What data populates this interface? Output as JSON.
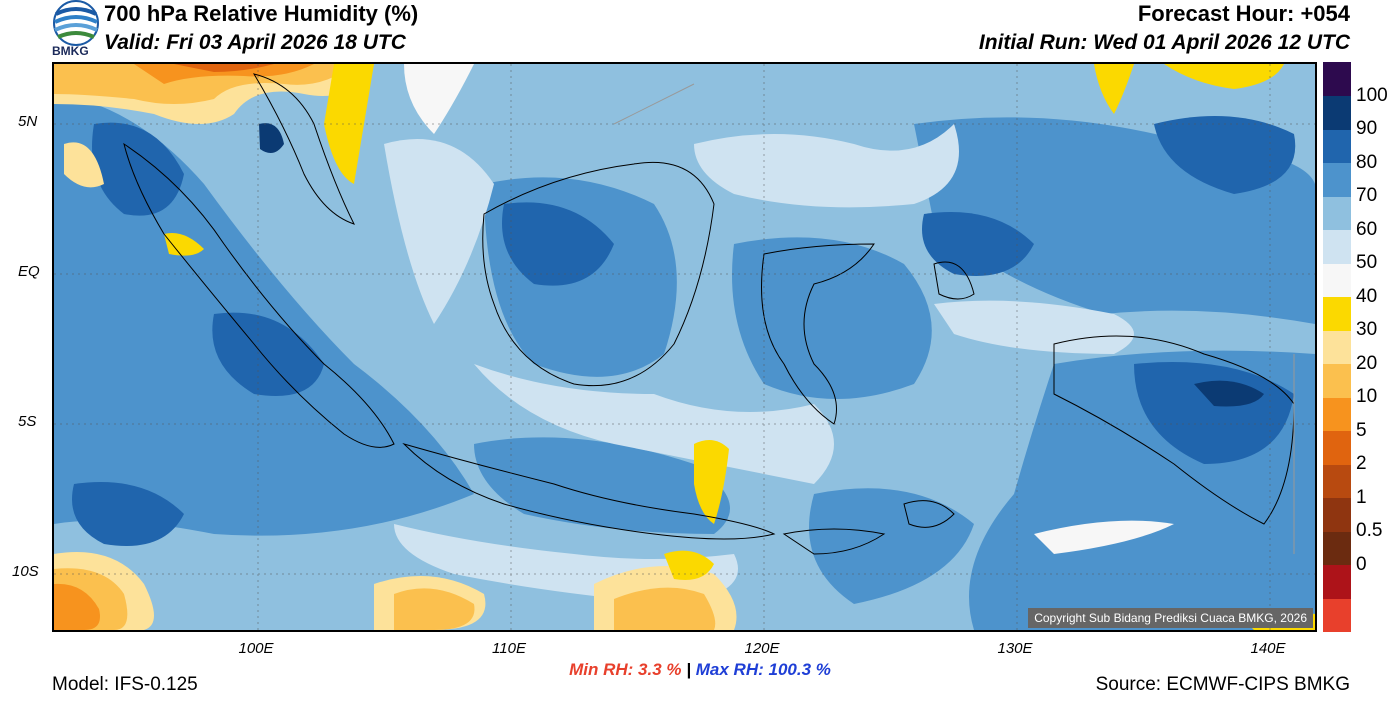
{
  "header": {
    "title": "700 hPa Relative Humidity (%)",
    "valid": "Valid: Fri 03 April 2026 18 UTC",
    "forecast_hour": "Forecast Hour: +054",
    "initial_run": "Initial Run: Wed 01 April 2026 12 UTC",
    "logo_text": "BMKG"
  },
  "map": {
    "copyright": "Copyright Sub Bidang Prediksi Cuaca BMKG, 2026",
    "lat_labels": [
      "5N",
      "EQ",
      "5S",
      "10S"
    ],
    "lon_labels": [
      "100E",
      "110E",
      "120E",
      "130E",
      "140E"
    ]
  },
  "colorbar": {
    "labels": [
      "100",
      "90",
      "80",
      "70",
      "60",
      "50",
      "40",
      "30",
      "20",
      "10",
      "5",
      "2",
      "1",
      "0.5",
      "0"
    ],
    "colors": [
      "#e8402c",
      "#ad1319",
      "#6b2b10",
      "#8f3510",
      "#b84a10",
      "#e0640f",
      "#f7931e",
      "#fbc04e",
      "#fde29a",
      "#fbd900",
      "#f7f7f7",
      "#cfe3f1",
      "#8fc0df",
      "#4d93cc",
      "#2065ad",
      "#0b3a73",
      "#2d0a4e"
    ]
  },
  "stats": {
    "min_label": "Min RH:",
    "min_value": "3.3 %",
    "separator": "|",
    "max_label": "Max RH: 100.3 %"
  },
  "footer": {
    "model": "Model: IFS-0.125",
    "source": "Source: ECMWF-CIPS BMKG"
  }
}
